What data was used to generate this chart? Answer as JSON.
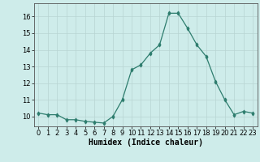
{
  "x": [
    0,
    1,
    2,
    3,
    4,
    5,
    6,
    7,
    8,
    9,
    10,
    11,
    12,
    13,
    14,
    15,
    16,
    17,
    18,
    19,
    20,
    21,
    22,
    23
  ],
  "y": [
    10.2,
    10.1,
    10.1,
    9.8,
    9.8,
    9.7,
    9.65,
    9.6,
    10.0,
    11.0,
    12.8,
    13.1,
    13.8,
    14.3,
    16.2,
    16.2,
    15.3,
    14.3,
    13.6,
    12.1,
    11.0,
    10.1,
    10.3,
    10.2
  ],
  "line_color": "#2e7d6e",
  "marker": "d",
  "marker_size": 2.5,
  "bg_color": "#ceecea",
  "grid_color": "#b8d4d2",
  "xlabel": "Humidex (Indice chaleur)",
  "xlabel_fontsize": 7,
  "tick_fontsize": 6,
  "ylim": [
    9.4,
    16.8
  ],
  "xlim": [
    -0.5,
    23.5
  ],
  "yticks": [
    10,
    11,
    12,
    13,
    14,
    15,
    16
  ],
  "xticks": [
    0,
    1,
    2,
    3,
    4,
    5,
    6,
    7,
    8,
    9,
    10,
    11,
    12,
    13,
    14,
    15,
    16,
    17,
    18,
    19,
    20,
    21,
    22,
    23
  ]
}
